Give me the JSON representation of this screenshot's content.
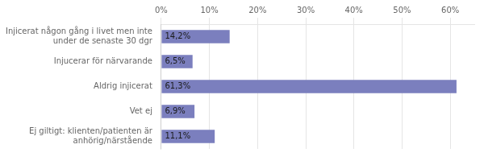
{
  "chart_data": {
    "type": "bar",
    "orientation": "horizontal",
    "categories": [
      "Injicerat någon gång i livet men inte\nunder de senaste 30 dgr",
      "Injucerar för närvarande",
      "Aldrig injicerat",
      "Vet ej",
      "Ej giltigt: klienten/patienten är\nanhörig/närstående"
    ],
    "values": [
      14.2,
      6.5,
      61.3,
      6.9,
      11.1
    ],
    "value_labels": [
      "14,2%",
      "6,5%",
      "61,3%",
      "6,9%",
      "11,1%"
    ],
    "data_labels": true,
    "color": "#7b7fbe",
    "xlim": [
      0,
      65
    ],
    "xticks": [
      {
        "value": 0,
        "label": "0%"
      },
      {
        "value": 10,
        "label": "10%"
      },
      {
        "value": 20,
        "label": "20%"
      },
      {
        "value": 30,
        "label": "30%"
      },
      {
        "value": 40,
        "label": "40%"
      },
      {
        "value": 50,
        "label": "50%"
      },
      {
        "value": 60,
        "label": "60%"
      }
    ],
    "grid": true
  }
}
